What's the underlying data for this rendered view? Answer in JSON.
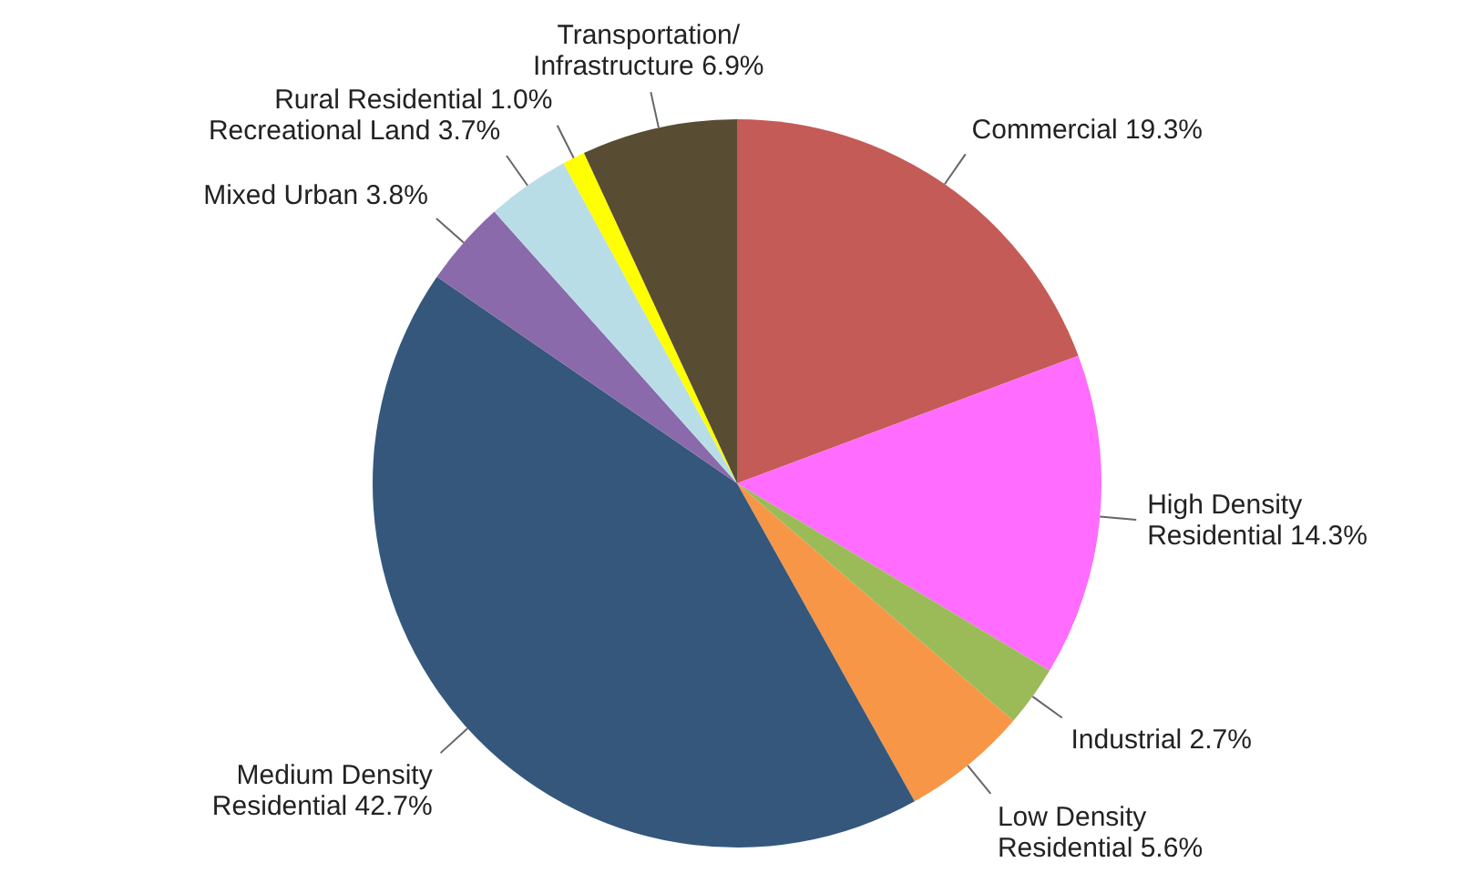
{
  "chart_data": {
    "type": "pie",
    "categories": [
      "Commercial",
      "High Density Residential",
      "Industrial",
      "Low Density Residential",
      "Medium Density Residential",
      "Mixed Urban",
      "Recreational Land",
      "Rural Residential",
      "Transportation/Infrastructure"
    ],
    "values": [
      19.3,
      14.3,
      2.7,
      5.6,
      42.7,
      3.8,
      3.7,
      1.0,
      6.9
    ],
    "colors": [
      "#c45b56",
      "#ff6cff",
      "#9bbb59",
      "#f79646",
      "#35577c",
      "#8a6aab",
      "#b9dde7",
      "#ffff00",
      "#584d33"
    ],
    "value_labels": [
      "19.3%",
      "14.3%",
      "2.7%",
      "5.6%",
      "42.7%",
      "3.8%",
      "3.7%",
      "1.0%",
      "6.9%"
    ]
  }
}
